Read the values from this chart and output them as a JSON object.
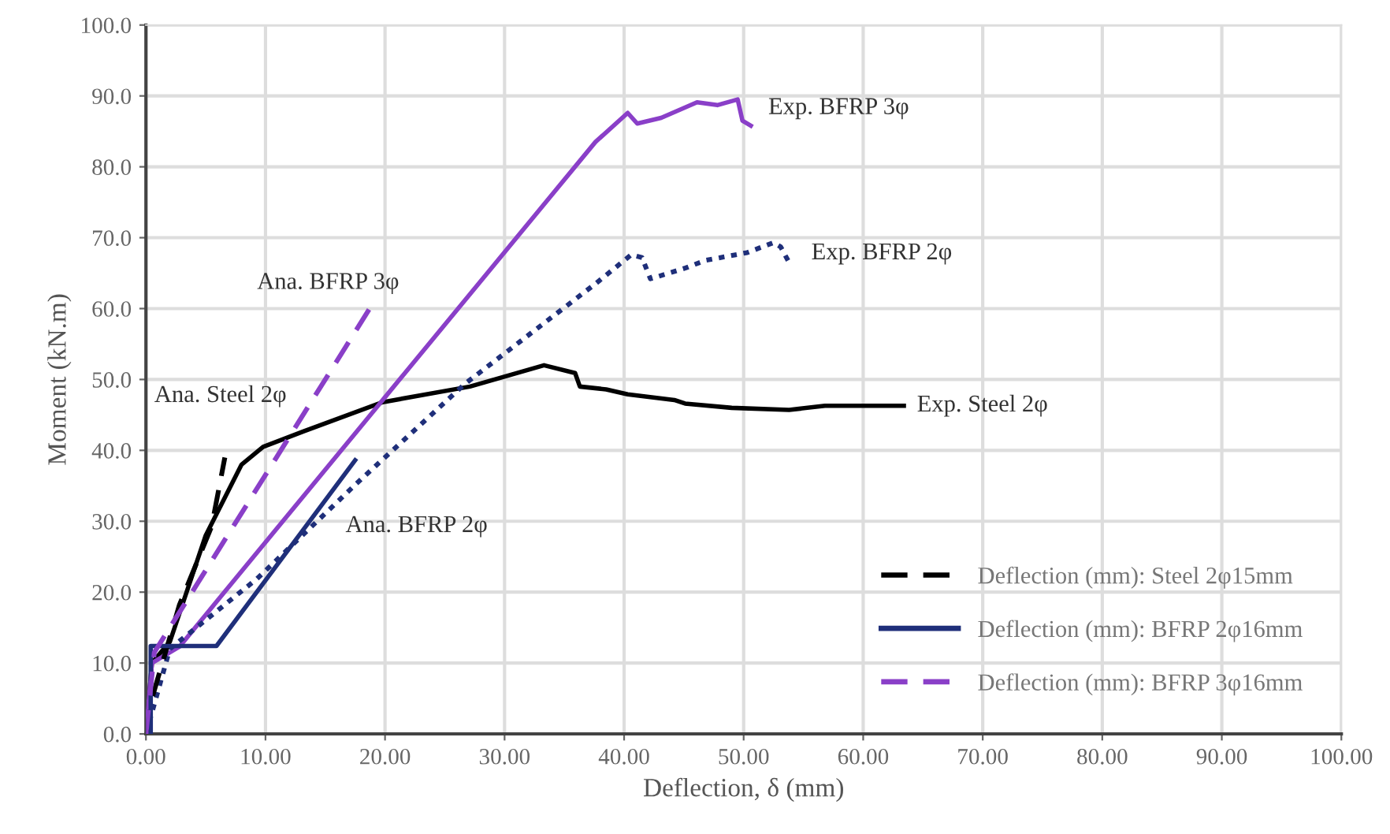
{
  "chart_data": {
    "type": "line",
    "xlabel": "Deflection, δ (mm)",
    "ylabel": "Moment (kN.m)",
    "xlim": [
      0,
      100
    ],
    "ylim": [
      0,
      100
    ],
    "xticks": [
      {
        "value": 0,
        "label": "0.00"
      },
      {
        "value": 10,
        "label": "10.00"
      },
      {
        "value": 20,
        "label": "20.00"
      },
      {
        "value": 30,
        "label": "30.00"
      },
      {
        "value": 40,
        "label": "40.00"
      },
      {
        "value": 50,
        "label": "50.00"
      },
      {
        "value": 60,
        "label": "60.00"
      },
      {
        "value": 70,
        "label": "70.00"
      },
      {
        "value": 80,
        "label": "80.00"
      },
      {
        "value": 90,
        "label": "90.00"
      },
      {
        "value": 100,
        "label": "100.00"
      }
    ],
    "yticks": [
      {
        "value": 0,
        "label": "0.0"
      },
      {
        "value": 10,
        "label": "10.0"
      },
      {
        "value": 20,
        "label": "20.0"
      },
      {
        "value": 30,
        "label": "30.0"
      },
      {
        "value": 40,
        "label": "40.0"
      },
      {
        "value": 50,
        "label": "50.0"
      },
      {
        "value": 60,
        "label": "60.0"
      },
      {
        "value": 70,
        "label": "70.0"
      },
      {
        "value": 80,
        "label": "80.0"
      },
      {
        "value": 90,
        "label": "90.0"
      },
      {
        "value": 100,
        "label": "100.0"
      }
    ],
    "grid": true,
    "legend": "bottom right",
    "marker": "none",
    "series": [
      {
        "color": "#000000",
        "line_style": "solid",
        "x": [
          0,
          0.5,
          2,
          5,
          8,
          9.8,
          13.2,
          19.8,
          27.1,
          33.3,
          35.9,
          36.3,
          38.5,
          40.3,
          44.2,
          45.1,
          49,
          53.8,
          56.8,
          63.4
        ],
        "values": [
          0,
          10,
          13,
          28,
          38,
          40.5,
          42.7,
          46.8,
          49,
          52,
          50.9,
          49,
          48.6,
          47.9,
          47.1,
          46.6,
          46,
          45.7,
          46.3,
          46.3
        ]
      },
      {
        "color": "#8a3fc8",
        "line_style": "solid",
        "x": [
          0,
          0.5,
          2.8,
          20,
          37.6,
          40.3,
          41.1,
          43.1,
          46.1,
          47.8,
          49.5,
          49.9,
          50.6
        ],
        "values": [
          0,
          10,
          12.3,
          47.5,
          83.5,
          87.6,
          86.1,
          86.9,
          89.1,
          88.7,
          89.5,
          86.5,
          85.8
        ]
      },
      {
        "color": "#1f2f7a",
        "line_style": "dotted",
        "x": [
          0,
          2,
          9.3,
          17.6,
          26.7,
          37.6,
          40.6,
          41.5,
          42.2,
          45.1,
          46.8,
          50.3,
          52.5,
          53.1,
          53.8
        ],
        "values": [
          0,
          12,
          21.9,
          35.3,
          49.4,
          63.5,
          67.6,
          67.2,
          64.2,
          65.7,
          66.8,
          67.9,
          69.3,
          68.7,
          66.5
        ]
      },
      {
        "name": "Deflection (mm): Steel 2φ15mm",
        "color": "#000000",
        "line_style": "dashed",
        "x": [
          0,
          0.5,
          2.8,
          5.5,
          6.6
        ],
        "values": [
          0,
          5,
          18.2,
          29.3,
          39
        ]
      },
      {
        "name": "Deflection (mm): BFRP 2φ16mm",
        "color": "#1f2f7a",
        "line_style": "solid",
        "x": [
          0,
          0.4,
          0.4,
          5.9,
          17.5
        ],
        "values": [
          0,
          0,
          12.4,
          12.4,
          38.6
        ]
      },
      {
        "name": "Deflection (mm): BFRP 3φ16mm",
        "color": "#8a3fc8",
        "line_style": "dashed",
        "x": [
          0,
          0.7,
          18.9
        ],
        "values": [
          0,
          11.5,
          60.5
        ]
      }
    ],
    "annotations": [
      {
        "text": "Ana. Steel 2φ",
        "x": 6.6,
        "y": 39
      },
      {
        "text": "Ana. BFRP 3φ",
        "x": 18.9,
        "y": 60.5
      },
      {
        "text": "Ana. BFRP 2φ",
        "x": 13.4,
        "y": 29.3
      },
      {
        "text": "Exp. BFRP 3φ",
        "x": 49.5,
        "y": 89.5
      },
      {
        "text": "Exp. BFRP 2φ",
        "x": 53.1,
        "y": 68.7
      },
      {
        "text": "Exp. Steel 2φ",
        "x": 63.4,
        "y": 46.3
      }
    ]
  }
}
